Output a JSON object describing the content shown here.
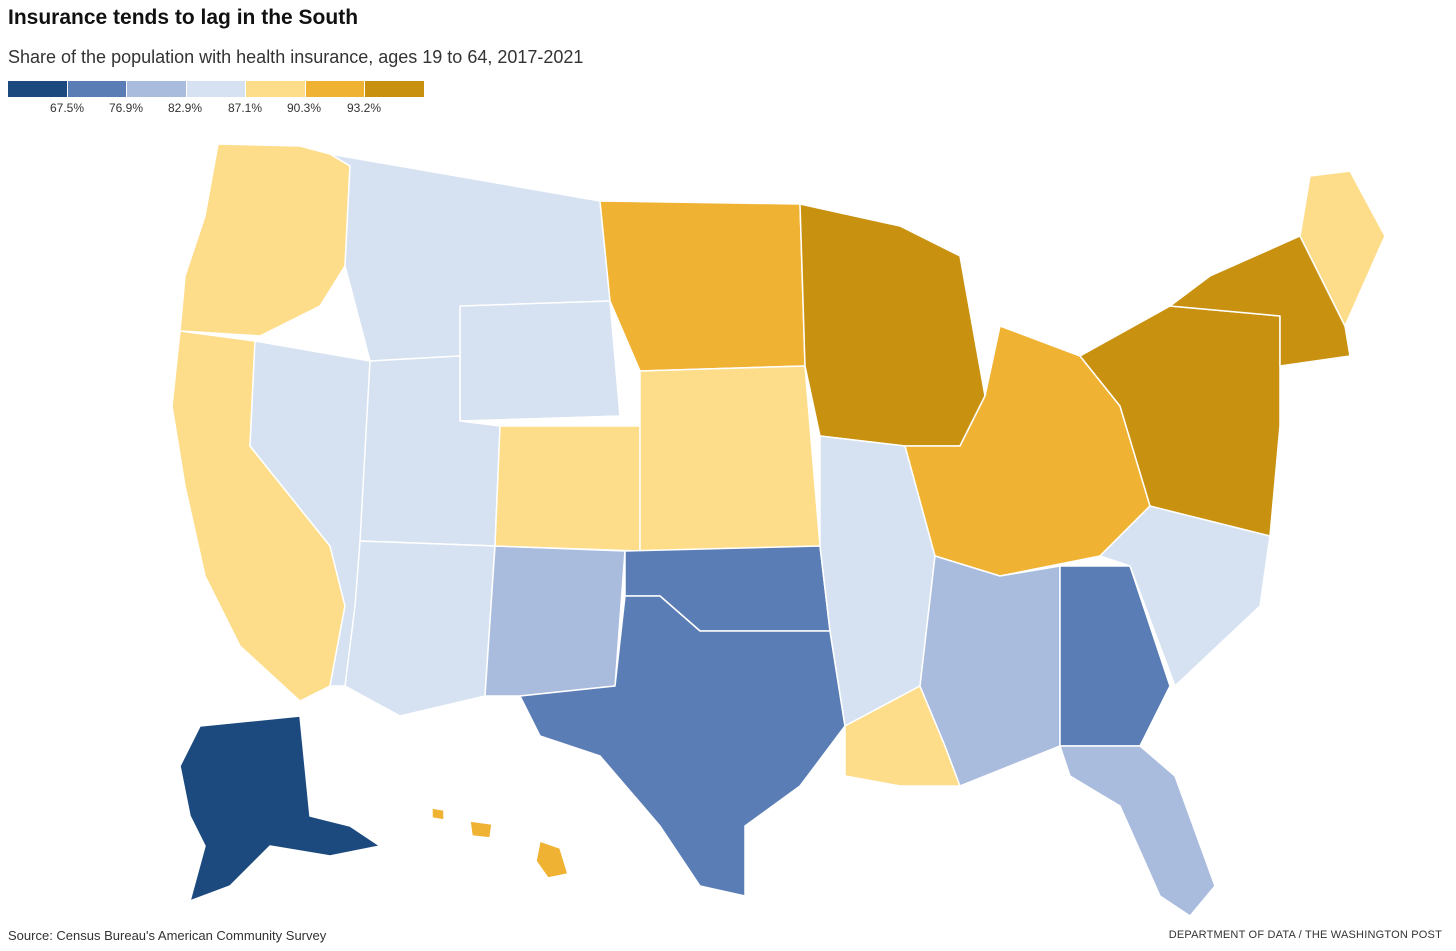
{
  "header": {
    "title": "Insurance tends to lag in the South",
    "subtitle": "Share of the population with health insurance, ages 19 to 64, 2017-2021"
  },
  "legend": {
    "colors": [
      "#1c4a7e",
      "#5b7db5",
      "#a9bcdd",
      "#d6e2f1",
      "#fedd8a",
      "#f0b233",
      "#c99110"
    ],
    "thresholds": [
      "67.5%",
      "76.9%",
      "82.9%",
      "87.1%",
      "90.3%",
      "93.2%"
    ]
  },
  "map": {
    "type": "choropleth",
    "regions": [
      {
        "name": "Pacific Northwest",
        "level": 4
      },
      {
        "name": "California",
        "level": 4
      },
      {
        "name": "Nevada",
        "level": 3
      },
      {
        "name": "Idaho-Montana",
        "level": 3
      },
      {
        "name": "Wyoming",
        "level": 3
      },
      {
        "name": "Utah",
        "level": 3
      },
      {
        "name": "Arizona",
        "level": 3
      },
      {
        "name": "New Mexico",
        "level": 2
      },
      {
        "name": "Colorado",
        "level": 4
      },
      {
        "name": "Dakotas",
        "level": 5
      },
      {
        "name": "Nebraska-Kansas",
        "level": 4
      },
      {
        "name": "Oklahoma",
        "level": 1
      },
      {
        "name": "Texas",
        "level": 1
      },
      {
        "name": "Upper Midwest",
        "level": 6
      },
      {
        "name": "Missouri-Arkansas",
        "level": 3
      },
      {
        "name": "Louisiana",
        "level": 4
      },
      {
        "name": "Ohio Valley",
        "level": 5
      },
      {
        "name": "Deep South",
        "level": 2
      },
      {
        "name": "Georgia",
        "level": 1
      },
      {
        "name": "Florida",
        "level": 2
      },
      {
        "name": "Carolinas",
        "level": 3
      },
      {
        "name": "Mid-Atlantic",
        "level": 6
      },
      {
        "name": "New England",
        "level": 6
      },
      {
        "name": "Maine",
        "level": 4
      },
      {
        "name": "Alaska",
        "level": 0
      },
      {
        "name": "Hawaii",
        "level": 5
      }
    ]
  },
  "footer": {
    "source": "Source: Census Bureau's American Community Survey",
    "credit": "DEPARTMENT OF DATA / THE WASHINGTON POST"
  }
}
